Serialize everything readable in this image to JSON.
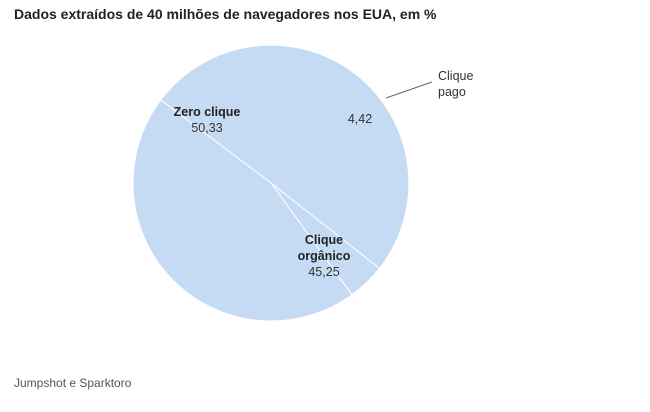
{
  "title": "Dados extraídos de 40 milhões de navegadores nos EUA, em %",
  "source": "Jumpshot e Sparktoro",
  "chart_data": {
    "type": "pie",
    "title": "Dados extraídos de 40 milhões de navegadores nos EUA, em %",
    "slices": [
      {
        "name_lines": [
          "Zero clique"
        ],
        "value": 50.33,
        "value_label": "50,33"
      },
      {
        "name_lines": [
          "Clique",
          "pago"
        ],
        "value": 4.42,
        "value_label": "4,42"
      },
      {
        "name_lines": [
          "Clique",
          "orgânico"
        ],
        "value": 45.25,
        "value_label": "45,25"
      }
    ],
    "colors": {
      "slice_fill": "#c5daf3",
      "slice_stroke": "#ffffff",
      "leader": "#666666"
    }
  }
}
